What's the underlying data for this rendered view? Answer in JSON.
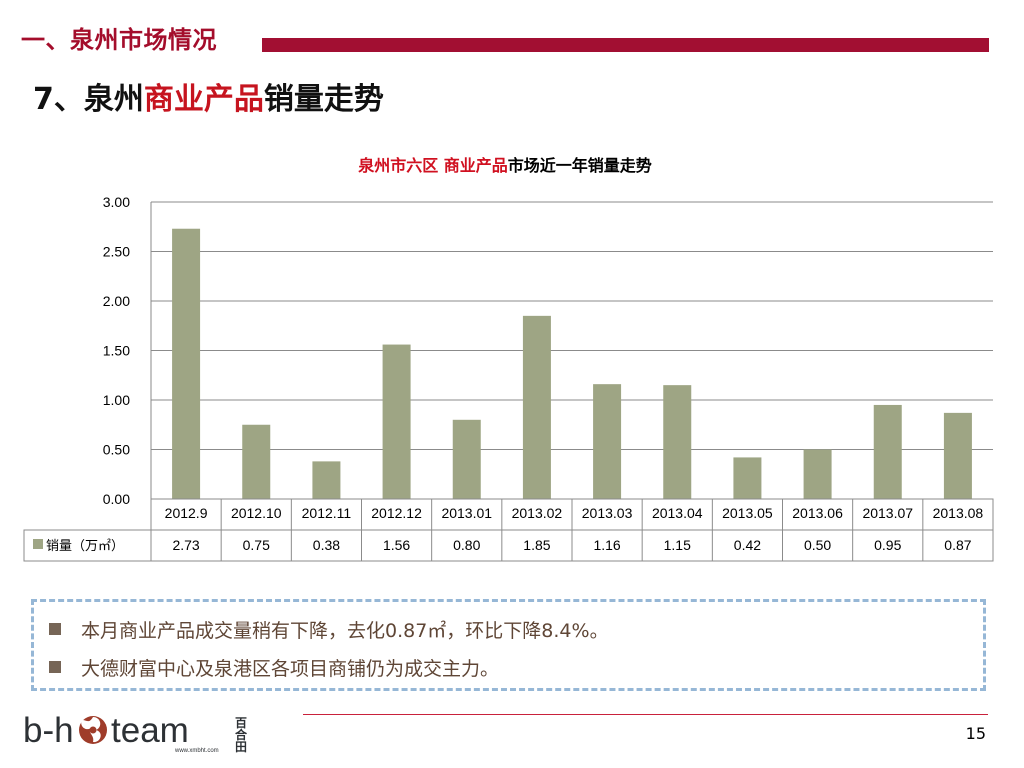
{
  "header": {
    "section_title": "一、泉州市场情况",
    "slide_title_prefix": "7、泉州",
    "slide_title_accent": "商业产品",
    "slide_title_suffix": "销量走势",
    "section_color": "#a20f32",
    "accent_color": "#c6141f"
  },
  "chart": {
    "title_red": "泉州市六区 商业产品",
    "title_black": "市场近一年销量走势"
  },
  "chart_data": {
    "type": "bar",
    "title": "泉州市六区 商业产品市场近一年销量走势",
    "categories": [
      "2012.9",
      "2012.10",
      "2012.11",
      "2012.12",
      "2013.01",
      "2013.02",
      "2013.03",
      "2013.04",
      "2013.05",
      "2013.06",
      "2013.07",
      "2013.08"
    ],
    "series": [
      {
        "name": "销量（万㎡）",
        "values": [
          2.73,
          0.75,
          0.38,
          1.56,
          0.8,
          1.85,
          1.16,
          1.15,
          0.42,
          0.5,
          0.95,
          0.87
        ],
        "value_labels": [
          "2.73",
          "0.75",
          "0.38",
          "1.56",
          "0.80",
          "1.85",
          "1.16",
          "1.15",
          "0.42",
          "0.50",
          "0.95",
          "0.87"
        ],
        "color": "#9ea584"
      }
    ],
    "yticks": [
      "3.00",
      "2.50",
      "2.00",
      "1.50",
      "1.00",
      "0.50",
      "0.00"
    ],
    "ylim": [
      0,
      3
    ],
    "grid": true,
    "legend": "data-table-left"
  },
  "notes": [
    {
      "text": "本月商业产品成交量稍有下降，去化0.87㎡，环比下降8.4%。"
    },
    {
      "text": "大德财富中心及泉港区各项目商铺仍为成交主力。"
    }
  ],
  "footer": {
    "logo_text": "b-hoteam",
    "logo_chinese": "百合田",
    "logo_url": "www.xmbht.com",
    "page_number": "15",
    "line_color": "#c9213b"
  }
}
